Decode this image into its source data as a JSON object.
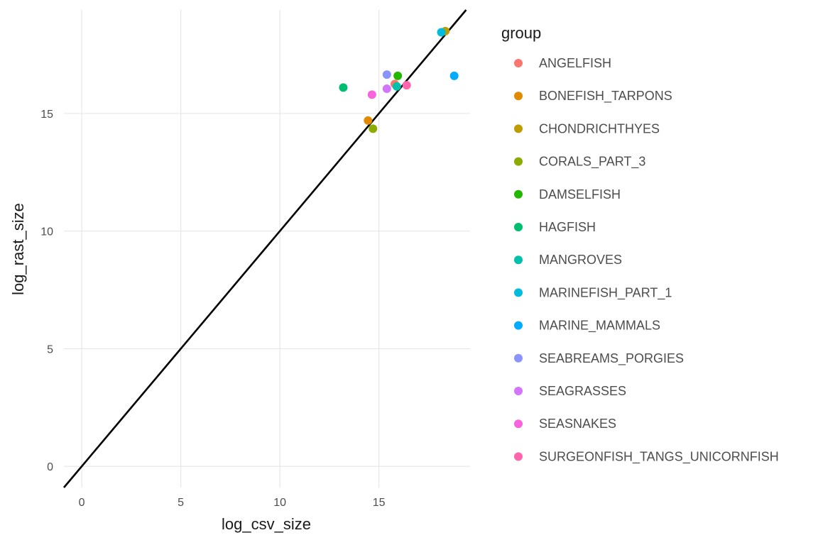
{
  "chart_data": {
    "type": "scatter",
    "xlabel": "log_csv_size",
    "ylabel": "log_rast_size",
    "xlim": [
      -0.9,
      19.6
    ],
    "ylim": [
      -0.9,
      19.4
    ],
    "x_ticks": [
      0,
      5,
      10,
      15
    ],
    "y_ticks": [
      0,
      5,
      10,
      15
    ],
    "grid": true,
    "reference_line": {
      "slope": 1,
      "intercept": 0,
      "color": "#000000"
    },
    "legend": {
      "title": "group",
      "position": "right"
    },
    "series": [
      {
        "name": "ANGELFISH",
        "color": "#F8766D",
        "points": [
          [
            15.8,
            16.25
          ]
        ]
      },
      {
        "name": "BONEFISH_TARPONS",
        "color": "#E18A00",
        "points": [
          [
            14.45,
            14.7
          ]
        ]
      },
      {
        "name": "CHONDRICHTHYES",
        "color": "#BE9C00",
        "points": [
          [
            18.35,
            18.5
          ]
        ]
      },
      {
        "name": "CORALS_PART_3",
        "color": "#8CAB00",
        "points": [
          [
            14.7,
            14.35
          ]
        ]
      },
      {
        "name": "DAMSELFISH",
        "color": "#24B700",
        "points": [
          [
            15.95,
            16.6
          ]
        ]
      },
      {
        "name": "HAGFISH",
        "color": "#00BE70",
        "points": [
          [
            13.2,
            16.1
          ]
        ]
      },
      {
        "name": "MANGROVES",
        "color": "#00C1AB",
        "points": [
          [
            15.9,
            16.15
          ]
        ]
      },
      {
        "name": "MARINEFISH_PART_1",
        "color": "#00BBDA",
        "points": [
          [
            18.15,
            18.45
          ]
        ]
      },
      {
        "name": "MARINE_MAMMALS",
        "color": "#00ACFC",
        "points": [
          [
            18.8,
            16.6
          ]
        ]
      },
      {
        "name": "SEABREAMS_PORGIES",
        "color": "#8B93FF",
        "points": [
          [
            15.4,
            16.65
          ]
        ]
      },
      {
        "name": "SEAGRASSES",
        "color": "#D575FE",
        "points": [
          [
            15.4,
            16.05
          ]
        ]
      },
      {
        "name": "SEASNAKES",
        "color": "#F962DD",
        "points": [
          [
            14.65,
            15.8
          ]
        ]
      },
      {
        "name": "SURGEONFISH_TANGS_UNICORNFISH",
        "color": "#FF65AC",
        "points": [
          [
            16.4,
            16.2
          ]
        ]
      }
    ]
  }
}
